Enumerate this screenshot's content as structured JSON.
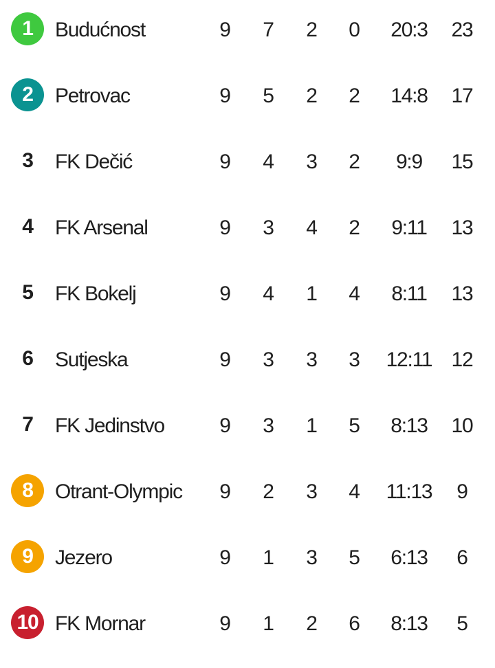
{
  "standings": [
    {
      "pos": "1",
      "badge_color": "#3fc93f",
      "team": "Budućnost",
      "p": "9",
      "w": "7",
      "d": "2",
      "l": "0",
      "goals": "20:3",
      "pts": "23"
    },
    {
      "pos": "2",
      "badge_color": "#0b9391",
      "team": "Petrovac",
      "p": "9",
      "w": "5",
      "d": "2",
      "l": "2",
      "goals": "14:8",
      "pts": "17"
    },
    {
      "pos": "3",
      "badge_color": "",
      "team": "FK Dečić",
      "p": "9",
      "w": "4",
      "d": "3",
      "l": "2",
      "goals": "9:9",
      "pts": "15"
    },
    {
      "pos": "4",
      "badge_color": "",
      "team": "FK Arsenal",
      "p": "9",
      "w": "3",
      "d": "4",
      "l": "2",
      "goals": "9:11",
      "pts": "13"
    },
    {
      "pos": "5",
      "badge_color": "",
      "team": "FK Bokelj",
      "p": "9",
      "w": "4",
      "d": "1",
      "l": "4",
      "goals": "8:11",
      "pts": "13"
    },
    {
      "pos": "6",
      "badge_color": "",
      "team": "Sutjeska",
      "p": "9",
      "w": "3",
      "d": "3",
      "l": "3",
      "goals": "12:11",
      "pts": "12"
    },
    {
      "pos": "7",
      "badge_color": "",
      "team": "FK Jedinstvo",
      "p": "9",
      "w": "3",
      "d": "1",
      "l": "5",
      "goals": "8:13",
      "pts": "10"
    },
    {
      "pos": "8",
      "badge_color": "#f5a300",
      "team": "Otrant-Olympic",
      "p": "9",
      "w": "2",
      "d": "3",
      "l": "4",
      "goals": "11:13",
      "pts": "9"
    },
    {
      "pos": "9",
      "badge_color": "#f5a300",
      "team": "Jezero",
      "p": "9",
      "w": "1",
      "d": "3",
      "l": "5",
      "goals": "6:13",
      "pts": "6"
    },
    {
      "pos": "10",
      "badge_color": "#c8202f",
      "team": "FK Mornar",
      "p": "9",
      "w": "1",
      "d": "2",
      "l": "6",
      "goals": "8:13",
      "pts": "5"
    }
  ]
}
